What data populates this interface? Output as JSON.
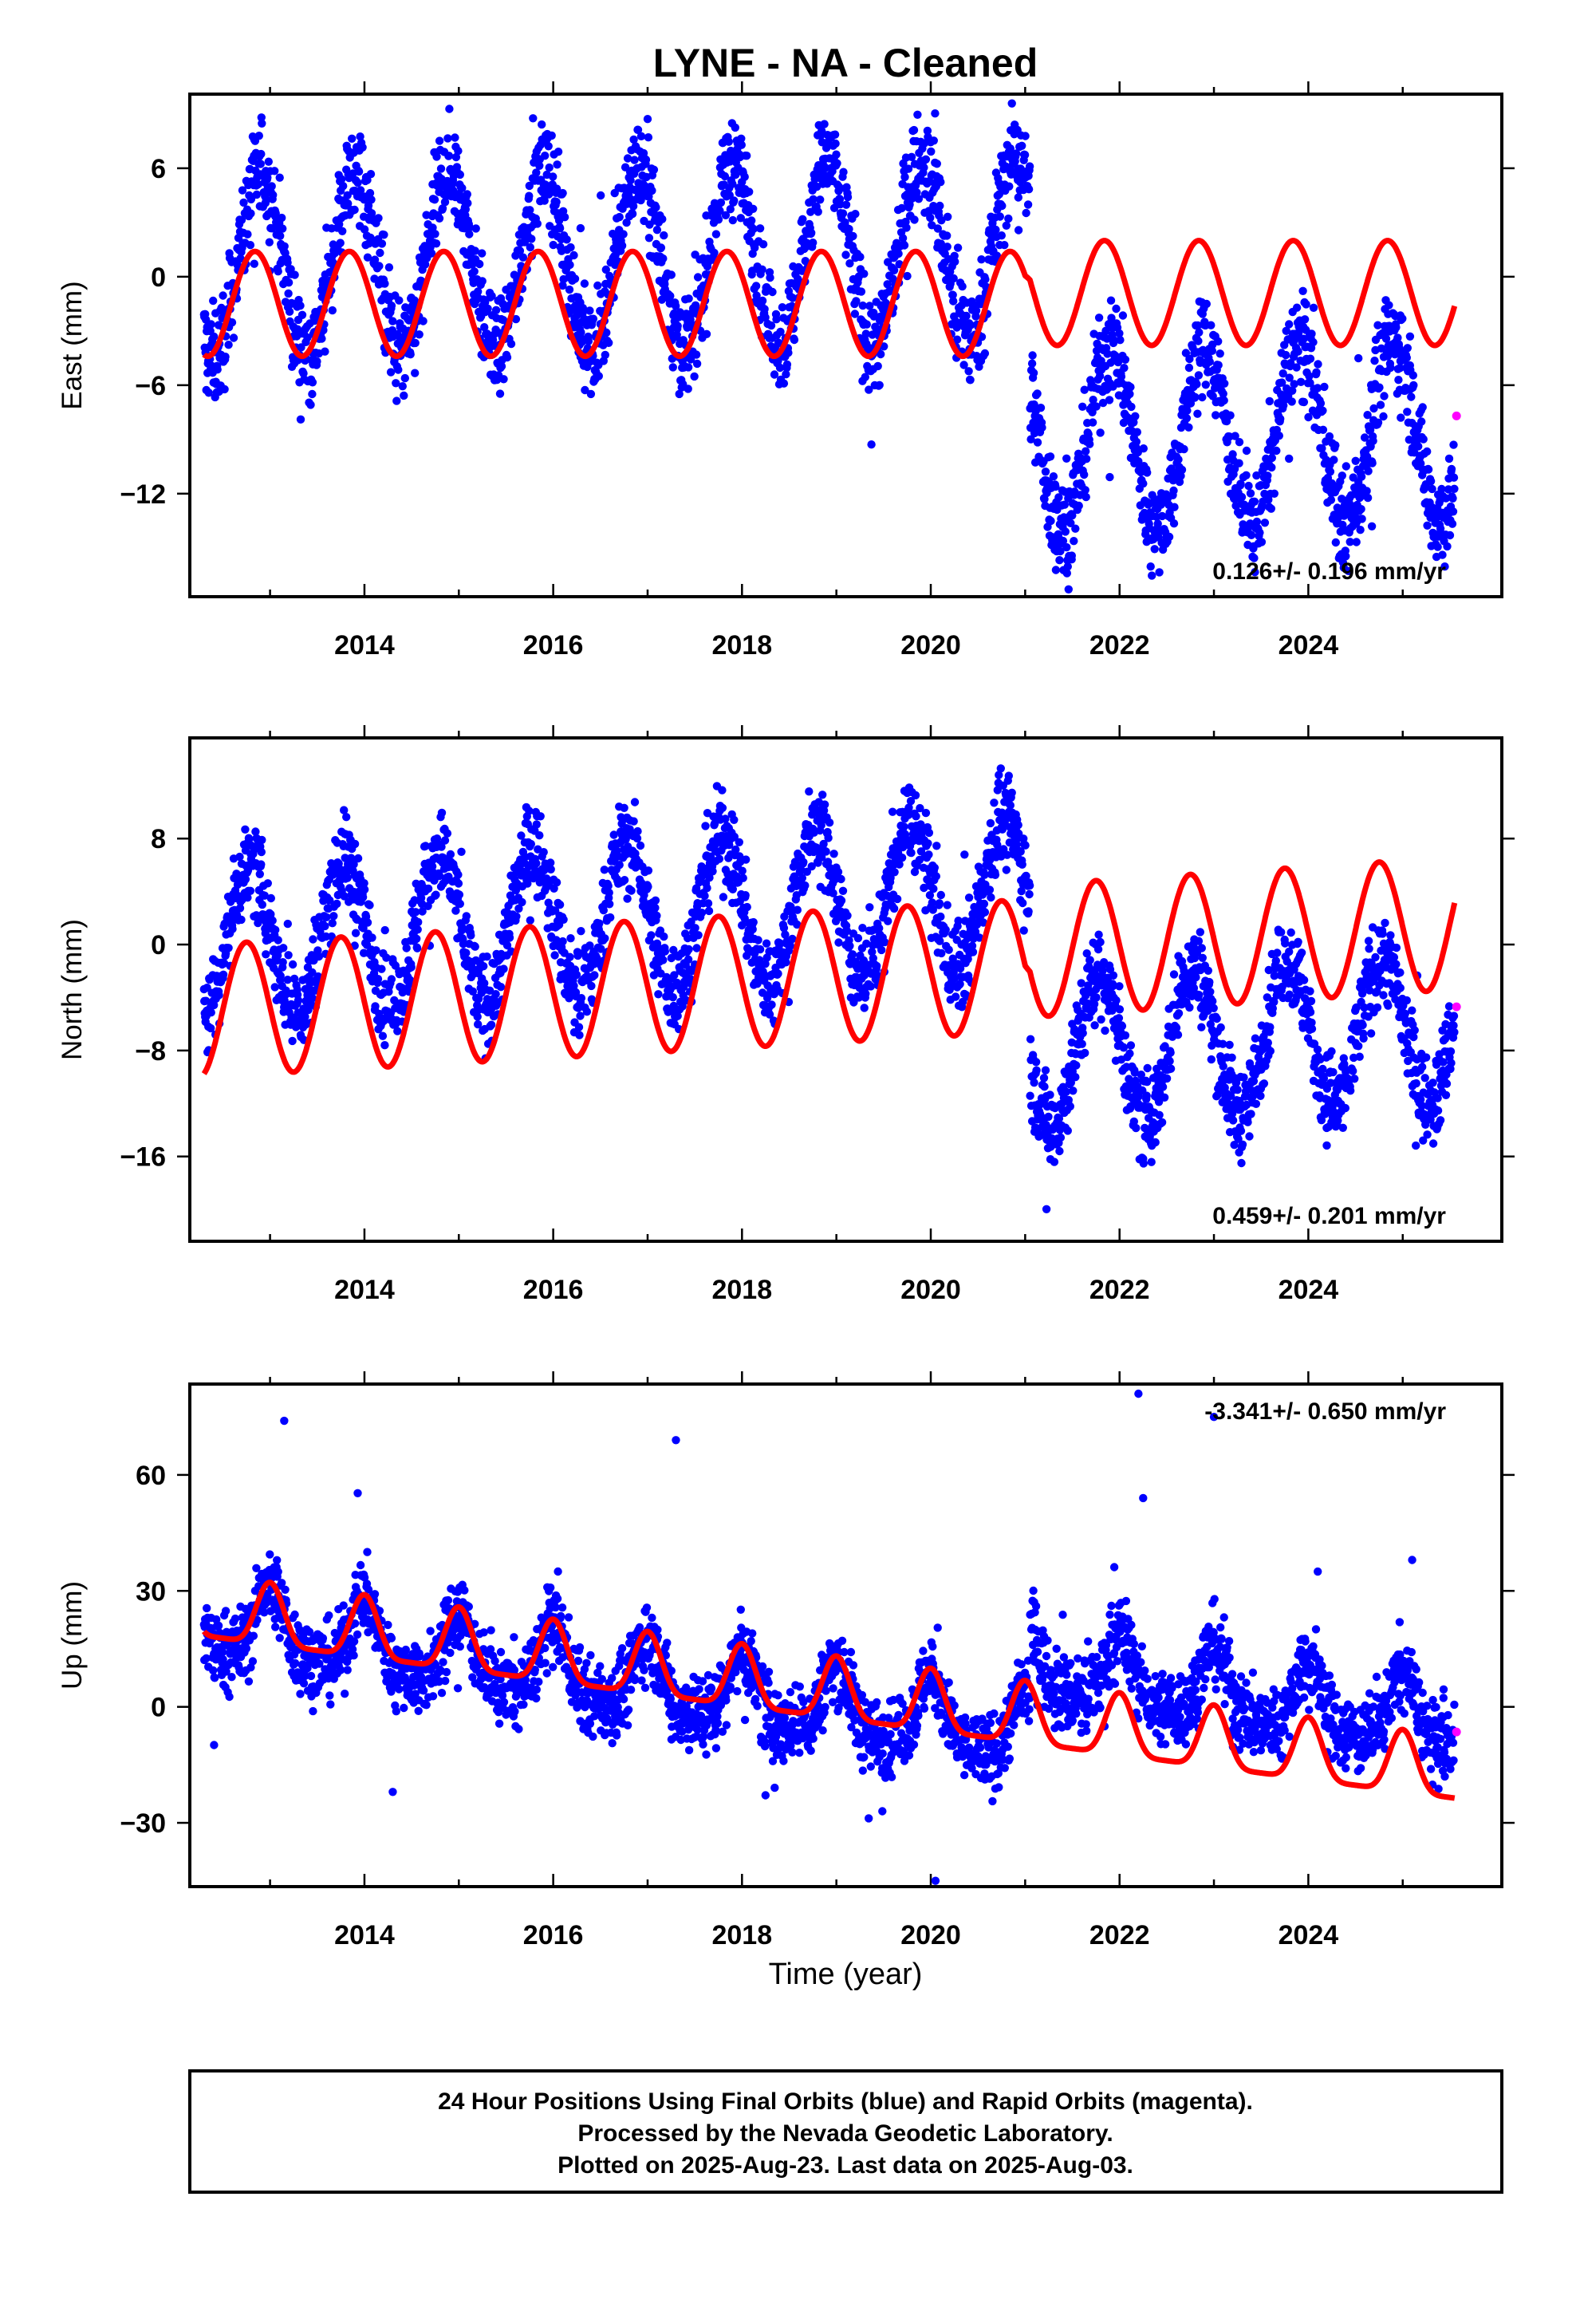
{
  "title": "LYNE  - NA - Cleaned",
  "xlabel": "Time (year)",
  "footer": [
    "24 Hour Positions Using Final Orbits (blue) and Rapid Orbits (magenta).",
    "Processed by the Nevada Geodetic Laboratory.",
    "Plotted on 2025-Aug-23. Last data on 2025-Aug-03."
  ],
  "colors": {
    "final_orbits": "#0000ff",
    "rapid_orbits": "#ff00ff",
    "model": "#ff0000",
    "frame": "#000000"
  },
  "chart_data": [
    {
      "type": "scatter",
      "ylabel": "East (mm)",
      "rate_text": "0.126+/- 0.196 mm/yr",
      "xlim": [
        2012.15,
        2026.05
      ],
      "ylim": [
        -17.7,
        10.1
      ],
      "xticks": [
        2014,
        2016,
        2018,
        2020,
        2022,
        2024
      ],
      "yticks": [
        -12,
        -6,
        0,
        6
      ],
      "series": [
        {
          "name": "Final Orbits",
          "model": {
            "mean": [
              [
                2012.3,
                -1.5
              ],
              [
                2021.0,
                -1.5
              ],
              [
                2021.05,
                -0.9
              ],
              [
                2025.55,
                -0.9
              ]
            ],
            "amp": 2.9,
            "slope": 0.126,
            "phase": -0.16
          },
          "points": {
            "amp": 5.0,
            "phase": -0.1,
            "noise": 1.4,
            "segments": [
              [
                2012.3,
                0.5,
                0.126
              ],
              [
                2021.05,
                -9.0,
                0.126
              ]
            ],
            "end": 2025.55
          }
        },
        {
          "name": "Rapid Orbits",
          "points": [
            [
              2025.57,
              -7.7
            ]
          ]
        }
      ]
    },
    {
      "type": "scatter",
      "ylabel": "North (mm)",
      "rate_text": "0.459+/- 0.201 mm/yr",
      "xlim": [
        2012.15,
        2026.05
      ],
      "ylim": [
        -22.4,
        15.6
      ],
      "xticks": [
        2014,
        2016,
        2018,
        2020,
        2022,
        2024
      ],
      "yticks": [
        -16,
        -8,
        0,
        8
      ],
      "series": [
        {
          "name": "Final Orbits",
          "model": {
            "mean": [
              [
                2012.3,
                -5.0
              ],
              [
                2021.0,
                -1.6
              ],
              [
                2021.05,
                -0.5
              ],
              [
                2025.55,
                1.6
              ]
            ],
            "amp": 5.0,
            "slope": 0.0,
            "phase": -0.25
          },
          "points": {
            "amp": 5.6,
            "phase": -0.22,
            "noise": 1.7,
            "segments": [
              [
                2012.3,
                0.0,
                0.459
              ],
              [
                2021.05,
                -8.2,
                0.459
              ]
            ],
            "end": 2025.55
          }
        },
        {
          "name": "Rapid Orbits",
          "points": [
            [
              2025.57,
              -4.7
            ]
          ]
        }
      ]
    },
    {
      "type": "scatter",
      "ylabel": "Up (mm)",
      "rate_text": "-3.341+/- 0.650 mm/yr",
      "xlim": [
        2012.15,
        2026.05
      ],
      "ylim": [
        -46.5,
        83.5
      ],
      "xticks": [
        2014,
        2016,
        2018,
        2020,
        2022,
        2024
      ],
      "yticks": [
        -30,
        0,
        30,
        60
      ],
      "series": [
        {
          "name": "Final Orbits",
          "model": {
            "mean": [
              [
                2012.3,
                22
              ],
              [
                2025.55,
                -20
              ]
            ],
            "amp": 8.0,
            "slope": 0.0,
            "phase": 0.0,
            "shape": "spike"
          },
          "points": {
            "amp": 9.0,
            "phase": 0.0,
            "noise": 5.0,
            "segments": [
              [
                2012.3,
                20,
                -3.341
              ],
              [
                2021.05,
                8.5,
                -3.341
              ]
            ],
            "end": 2025.55,
            "shape": "spike",
            "outliers": [
              [
                2013.15,
                74
              ],
              [
                2017.3,
                69
              ],
              [
                2022.2,
                81
              ],
              [
                2023.0,
                75
              ],
              [
                2022.25,
                54
              ],
              [
                2024.1,
                35
              ],
              [
                2014.3,
                -22
              ],
              [
                2020.05,
                -45
              ],
              [
                2025.1,
                38
              ]
            ]
          }
        },
        {
          "name": "Rapid Orbits",
          "points": [
            [
              2025.57,
              -6.5
            ]
          ]
        }
      ]
    }
  ]
}
